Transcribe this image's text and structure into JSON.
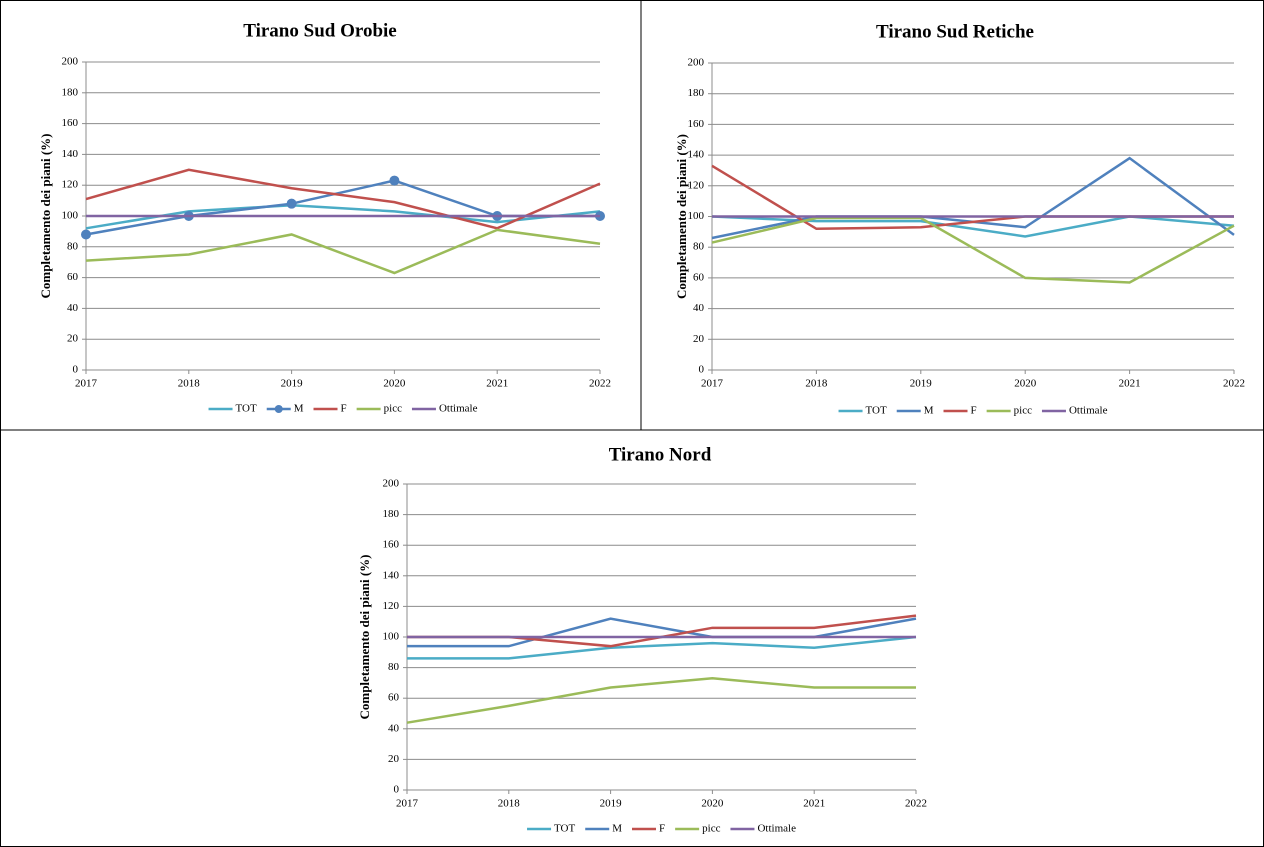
{
  "chart_data": [
    {
      "type": "line",
      "title": "Tirano Sud Orobie",
      "y_label": "Completamento dei piani (%)",
      "x": [
        2017,
        2018,
        2019,
        2020,
        2021,
        2022
      ],
      "xlim": [
        2017,
        2022
      ],
      "xticks": [
        2017,
        2018,
        2019,
        2020,
        2021,
        2022
      ],
      "ylim": [
        0,
        200
      ],
      "yticks": [
        0,
        20,
        40,
        60,
        80,
        100,
        120,
        140,
        160,
        180,
        200
      ],
      "grid": true,
      "legend": "bottom",
      "series": [
        {
          "name": "TOT",
          "color": "#4bacc6",
          "values": [
            92,
            103,
            107,
            103,
            96,
            103
          ]
        },
        {
          "name": "M",
          "color": "#4f81bd",
          "marker": true,
          "values": [
            88,
            100,
            108,
            123,
            100,
            100
          ]
        },
        {
          "name": "F",
          "color": "#c0504d",
          "values": [
            111,
            130,
            118,
            109,
            92,
            121
          ]
        },
        {
          "name": "picc",
          "color": "#9bbb59",
          "values": [
            71,
            75,
            88,
            63,
            91,
            82
          ]
        },
        {
          "name": "Ottimale",
          "color": "#8064a2",
          "values": [
            100,
            100,
            100,
            100,
            100,
            100
          ]
        }
      ]
    },
    {
      "type": "line",
      "title": "Tirano Sud Retiche",
      "y_label": "Completamento dei piani (%)",
      "x": [
        2017,
        2018,
        2019,
        2020,
        2021,
        2022
      ],
      "xlim": [
        2017,
        2022
      ],
      "xticks": [
        2017,
        2018,
        2019,
        2020,
        2021,
        2022
      ],
      "ylim": [
        0,
        200
      ],
      "yticks": [
        0,
        20,
        40,
        60,
        80,
        100,
        120,
        140,
        160,
        180,
        200
      ],
      "grid": true,
      "legend": "bottom",
      "series": [
        {
          "name": "TOT",
          "color": "#4bacc6",
          "values": [
            100,
            97,
            97,
            87,
            100,
            94
          ]
        },
        {
          "name": "M",
          "color": "#4f81bd",
          "values": [
            86,
            100,
            100,
            93,
            138,
            88
          ]
        },
        {
          "name": "F",
          "color": "#c0504d",
          "values": [
            133,
            92,
            93,
            100,
            100,
            100
          ]
        },
        {
          "name": "picc",
          "color": "#9bbb59",
          "values": [
            83,
            99,
            99,
            60,
            57,
            94
          ]
        },
        {
          "name": "Ottimale",
          "color": "#8064a2",
          "values": [
            100,
            100,
            100,
            100,
            100,
            100
          ]
        }
      ]
    },
    {
      "type": "line",
      "title": "Tirano Nord",
      "y_label": "Completamento dei piani (%)",
      "x": [
        2017,
        2018,
        2019,
        2020,
        2021,
        2022
      ],
      "xlim": [
        2017,
        2022
      ],
      "xticks": [
        2017,
        2018,
        2019,
        2020,
        2021,
        2022
      ],
      "ylim": [
        0,
        200
      ],
      "yticks": [
        0,
        20,
        40,
        60,
        80,
        100,
        120,
        140,
        160,
        180,
        200
      ],
      "grid": true,
      "legend": "bottom",
      "series": [
        {
          "name": "TOT",
          "color": "#4bacc6",
          "values": [
            86,
            86,
            93,
            96,
            93,
            100
          ]
        },
        {
          "name": "M",
          "color": "#4f81bd",
          "values": [
            94,
            94,
            112,
            100,
            100,
            112
          ]
        },
        {
          "name": "F",
          "color": "#c0504d",
          "values": [
            100,
            100,
            94,
            106,
            106,
            114
          ]
        },
        {
          "name": "picc",
          "color": "#9bbb59",
          "values": [
            44,
            55,
            67,
            73,
            67,
            67
          ]
        },
        {
          "name": "Ottimale",
          "color": "#8064a2",
          "values": [
            100,
            100,
            100,
            100,
            100,
            100
          ]
        }
      ]
    }
  ]
}
